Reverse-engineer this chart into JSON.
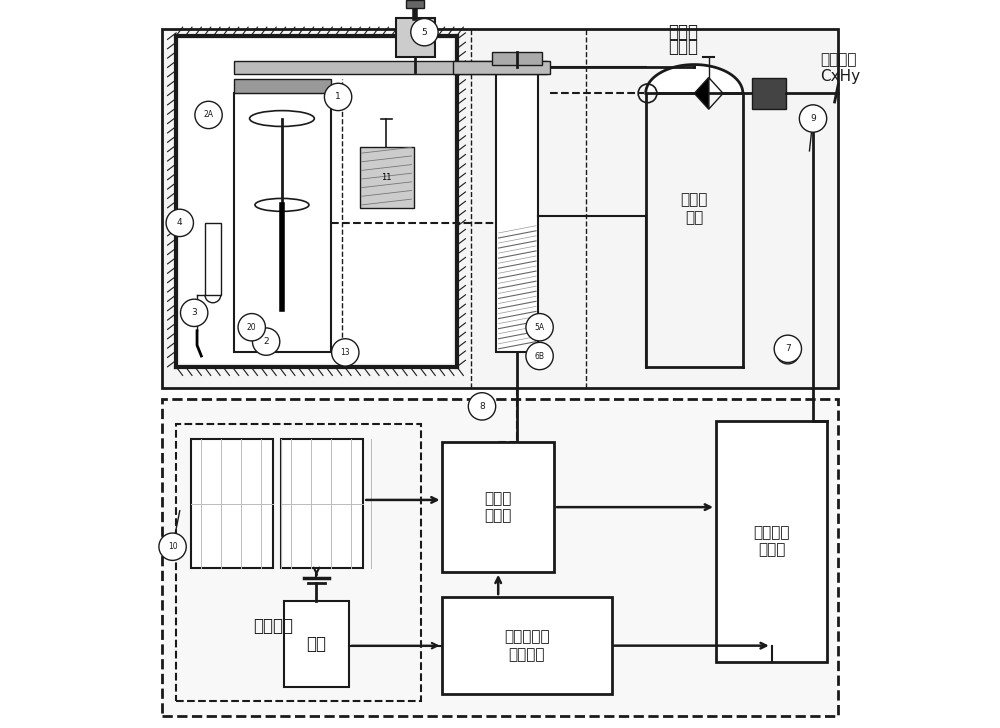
{
  "bg_color": "#ffffff",
  "line_color": "#1a1a1a",
  "labels": {
    "tiaojieqi": "调节器",
    "qitirangliao": "气体燃料\nCxHy",
    "huanchongcunchu": "缓冲储\n存罐",
    "taiyangnenban": "太阳能板",
    "dianci": "电池",
    "gonglv": "功率控\n制系统",
    "guocheng": "过程控制自\n动化系统",
    "pinjv": "高频谐振\n发生器"
  },
  "figsize": [
    10.0,
    7.28
  ],
  "dpi": 100
}
